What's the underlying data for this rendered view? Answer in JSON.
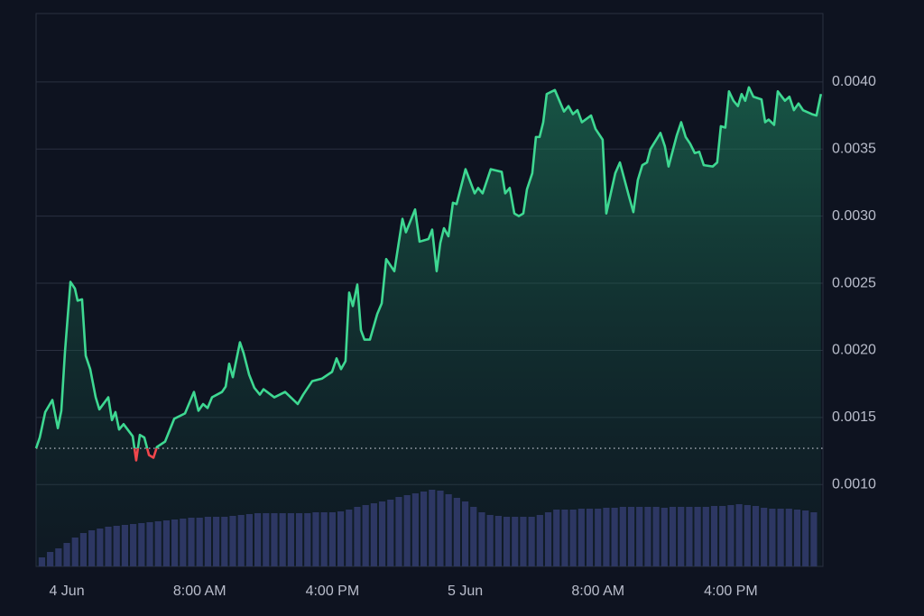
{
  "chart_data": {
    "type": "line",
    "x": [
      -1.85,
      -1.63,
      -1.3,
      -0.87,
      -0.54,
      -0.33,
      -0.11,
      0.22,
      0.49,
      0.65,
      0.92,
      1.14,
      1.41,
      1.74,
      1.96,
      2.5,
      2.72,
      2.93,
      3.15,
      3.42,
      3.97,
      4.18,
      4.4,
      4.67,
      4.95,
      5.22,
      5.43,
      5.92,
      6.47,
      7.12,
      7.66,
      7.93,
      8.21,
      8.48,
      8.75,
      9.35,
      9.57,
      9.78,
      10,
      10.43,
      10.65,
      10.98,
      11.3,
      11.63,
      11.85,
      12.5,
      13.15,
      13.91,
      14.24,
      14.78,
      15.38,
      15.98,
      16.25,
      16.52,
      16.79,
      17.01,
      17.23,
      17.5,
      17.72,
      17.93,
      18.26,
      18.7,
      18.97,
      19.24,
      19.73,
      20.22,
      20.43,
      20.98,
      21.25,
      21.79,
      22.01,
      22.28,
      22.5,
      22.72,
      22.99,
      23.26,
      23.48,
      24.02,
      24.57,
      24.78,
      25.05,
      25.54,
      26.2,
      26.41,
      26.68,
      26.96,
      27.23,
      27.5,
      27.72,
      28.04,
      28.26,
      28.48,
      28.7,
      28.91,
      29.4,
      29.95,
      30.22,
      30.49,
      30.76,
      31.03,
      31.58,
      31.85,
      32.28,
      32.5,
      33.04,
      33.32,
      33.86,
      34.13,
      34.4,
      34.67,
      34.95,
      35.16,
      35.76,
      36.03,
      36.25,
      36.74,
      37.01,
      37.28,
      37.55,
      37.83,
      38.1,
      38.37,
      38.91,
      39.18,
      39.4,
      39.67,
      39.89,
      40.16,
      40.43,
      40.65,
      40.87,
      41.09,
      41.36,
      41.85,
      42.07,
      42.28,
      42.61,
      42.83,
      43.26,
      43.53,
      43.8,
      44.08,
      44.35,
      44.89,
      45.16,
      45.43
    ],
    "series": [
      {
        "color": "#3ed892",
        "values": [
          0.00127,
          0.00135,
          0.00154,
          0.00163,
          0.00142,
          0.00155,
          0.00199,
          0.00251,
          0.00246,
          0.00237,
          0.00238,
          0.00196,
          0.00186,
          0.00165,
          0.00156,
          0.00165,
          0.00148,
          0.00154,
          0.00141,
          0.00145,
          0.00136,
          0.00118,
          0.00137,
          0.00135,
          0.00122,
          0.0012,
          0.00128,
          0.00132,
          0.00149,
          0.00153,
          0.00169,
          0.00155,
          0.0016,
          0.00157,
          0.00165,
          0.00169,
          0.00173,
          0.0019,
          0.0018,
          0.00206,
          0.00198,
          0.00182,
          0.00172,
          0.00167,
          0.00171,
          0.00165,
          0.00169,
          0.0016,
          0.00167,
          0.00177,
          0.00179,
          0.00184,
          0.00194,
          0.00186,
          0.00192,
          0.00243,
          0.00233,
          0.00249,
          0.00215,
          0.00208,
          0.00208,
          0.00227,
          0.00235,
          0.00268,
          0.00259,
          0.00298,
          0.00288,
          0.00305,
          0.00281,
          0.00283,
          0.0029,
          0.00259,
          0.0028,
          0.00291,
          0.00285,
          0.0031,
          0.00309,
          0.00335,
          0.00317,
          0.00321,
          0.00317,
          0.00335,
          0.00333,
          0.00317,
          0.00321,
          0.00302,
          0.003,
          0.00302,
          0.0032,
          0.00332,
          0.00359,
          0.00359,
          0.0037,
          0.00391,
          0.00394,
          0.00378,
          0.00382,
          0.00376,
          0.00379,
          0.0037,
          0.00375,
          0.00365,
          0.00357,
          0.00302,
          0.00332,
          0.0034,
          0.00315,
          0.00303,
          0.00327,
          0.00338,
          0.0034,
          0.0035,
          0.00362,
          0.00352,
          0.00337,
          0.0036,
          0.0037,
          0.00359,
          0.00354,
          0.00347,
          0.00348,
          0.00338,
          0.00337,
          0.0034,
          0.00367,
          0.00366,
          0.00393,
          0.00386,
          0.00382,
          0.00391,
          0.00386,
          0.00396,
          0.00389,
          0.00387,
          0.0037,
          0.00372,
          0.00368,
          0.00393,
          0.00386,
          0.00389,
          0.00379,
          0.00384,
          0.00379,
          0.00376,
          0.00375,
          0.00391
        ]
      }
    ],
    "below_color": "#f0474c",
    "baseline": 0.00127,
    "volume": {
      "color": "#2d3763",
      "x": [
        -1.5,
        -1,
        -0.5,
        0,
        0.5,
        1,
        1.5,
        2,
        2.5,
        3,
        3.5,
        4,
        4.5,
        5,
        5.5,
        6,
        6.5,
        7,
        7.5,
        8,
        8.5,
        9,
        9.5,
        10,
        10.5,
        11,
        11.5,
        12,
        12.5,
        13,
        13.5,
        14,
        14.5,
        15,
        15.5,
        16,
        16.5,
        17,
        17.5,
        18,
        18.5,
        19,
        19.5,
        20,
        20.5,
        21,
        21.5,
        22,
        22.5,
        23,
        23.5,
        24,
        24.5,
        25,
        25.5,
        26,
        26.5,
        27,
        27.5,
        28,
        28.5,
        29,
        29.5,
        30,
        30.5,
        31,
        31.5,
        32,
        32.5,
        33,
        33.5,
        34,
        34.5,
        35,
        35.5,
        36,
        36.5,
        37,
        37.5,
        38,
        38.5,
        39,
        39.5,
        40,
        40.5,
        41,
        41.5,
        42,
        42.5,
        43,
        43.5,
        44,
        44.5,
        45
      ],
      "values": [
        10,
        16,
        20,
        26,
        32,
        37,
        40,
        42,
        44,
        45,
        46,
        47,
        48,
        49,
        50,
        51,
        52,
        53,
        54,
        54,
        55,
        55,
        55,
        56,
        57,
        58,
        59,
        59,
        59,
        59,
        59,
        59,
        59,
        60,
        60,
        60,
        61,
        63,
        66,
        68,
        70,
        72,
        74,
        77,
        79,
        81,
        83,
        85,
        84,
        80,
        76,
        72,
        66,
        60,
        57,
        56,
        55,
        55,
        55,
        55,
        57,
        60,
        63,
        63,
        63,
        64,
        64,
        64,
        65,
        65,
        66,
        66,
        66,
        66,
        66,
        65,
        66,
        66,
        66,
        66,
        66,
        67,
        67,
        68,
        69,
        68,
        67,
        65,
        64,
        64,
        64,
        63,
        62,
        60
      ]
    },
    "xlim": [
      -1.85,
      45.55
    ],
    "xticks": [
      {
        "value": 0,
        "label": "4 Jun"
      },
      {
        "value": 8,
        "label": "8:00 AM"
      },
      {
        "value": 16,
        "label": "4:00 PM"
      },
      {
        "value": 24,
        "label": "5 Jun"
      },
      {
        "value": 32,
        "label": "8:00 AM"
      },
      {
        "value": 40,
        "label": "4:00 PM"
      }
    ],
    "ylim": [
      0.00039,
      0.00451
    ],
    "yticks": [
      {
        "value": 0.001,
        "label": "0.0010"
      },
      {
        "value": 0.0015,
        "label": "0.0015"
      },
      {
        "value": 0.002,
        "label": "0.0020"
      },
      {
        "value": 0.0025,
        "label": "0.0025"
      },
      {
        "value": 0.003,
        "label": "0.0030"
      },
      {
        "value": 0.0035,
        "label": "0.0035"
      },
      {
        "value": 0.004,
        "label": "0.0040"
      }
    ],
    "grid": true
  }
}
